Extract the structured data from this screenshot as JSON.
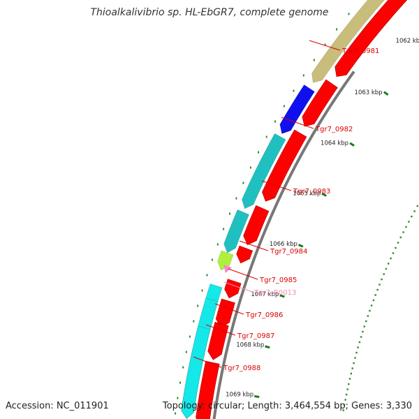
{
  "title": "Thioalkalivibrio sp. HL-EbGR7, complete genome",
  "footer": {
    "accession": "Accession: NC_011901",
    "summary": "Topology: circular; Length: 3,464,554 bp; Genes: 3,330"
  },
  "colors": {
    "backbone": "#777777",
    "forward_gene": "#ff0000",
    "tick": "#1a7a1a",
    "label": "#dd0000",
    "rna_label": "#f08cb4",
    "gc_dots": "#2a8a2a"
  },
  "scale": [
    {
      "label": "1062 kbp"
    },
    {
      "label": "1063 kbp"
    },
    {
      "label": "1064 kbp"
    },
    {
      "label": "1065 kbp"
    },
    {
      "label": "1066 kbp"
    },
    {
      "label": "1067 kbp"
    },
    {
      "label": "1068 kbp"
    },
    {
      "label": "1069 kbp"
    }
  ],
  "genes": [
    {
      "label": "Tgr7_0981",
      "color": "#c8bd7a"
    },
    {
      "label": "Tgr7_0982",
      "color": "#1010ee"
    },
    {
      "label": "Tgr7_0983",
      "color": "#20c0c0"
    },
    {
      "label": "Tgr7_0984",
      "color": "#20c0c0"
    },
    {
      "label": "Tgr7_0985",
      "color": "#aef03c"
    },
    {
      "label": "Tgr7_R0013",
      "color": "#f08cc8"
    },
    {
      "label": "Tgr7_0986",
      "color": "#14e8e8"
    },
    {
      "label": "Tgr7_0987",
      "color": "#14e8e8"
    },
    {
      "label": "Tgr7_0988",
      "color": "#14e8e8"
    }
  ]
}
